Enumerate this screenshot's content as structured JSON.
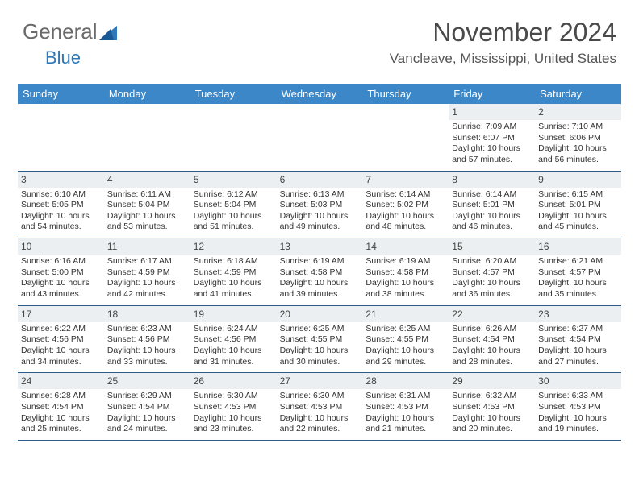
{
  "logo": {
    "text1": "General",
    "text2": "Blue"
  },
  "header": {
    "month_title": "November 2024",
    "location": "Vancleave, Mississippi, United States"
  },
  "day_names": [
    "Sunday",
    "Monday",
    "Tuesday",
    "Wednesday",
    "Thursday",
    "Friday",
    "Saturday"
  ],
  "colors": {
    "header_bg": "#3b87c8",
    "header_text": "#ffffff",
    "daynum_bg": "#eceff1",
    "row_border": "#2b5b86"
  },
  "weeks": [
    [
      {
        "empty": true
      },
      {
        "empty": true
      },
      {
        "empty": true
      },
      {
        "empty": true
      },
      {
        "empty": true
      },
      {
        "day": "1",
        "sunrise": "Sunrise: 7:09 AM",
        "sunset": "Sunset: 6:07 PM",
        "daylight": "Daylight: 10 hours and 57 minutes."
      },
      {
        "day": "2",
        "sunrise": "Sunrise: 7:10 AM",
        "sunset": "Sunset: 6:06 PM",
        "daylight": "Daylight: 10 hours and 56 minutes."
      }
    ],
    [
      {
        "day": "3",
        "sunrise": "Sunrise: 6:10 AM",
        "sunset": "Sunset: 5:05 PM",
        "daylight": "Daylight: 10 hours and 54 minutes."
      },
      {
        "day": "4",
        "sunrise": "Sunrise: 6:11 AM",
        "sunset": "Sunset: 5:04 PM",
        "daylight": "Daylight: 10 hours and 53 minutes."
      },
      {
        "day": "5",
        "sunrise": "Sunrise: 6:12 AM",
        "sunset": "Sunset: 5:04 PM",
        "daylight": "Daylight: 10 hours and 51 minutes."
      },
      {
        "day": "6",
        "sunrise": "Sunrise: 6:13 AM",
        "sunset": "Sunset: 5:03 PM",
        "daylight": "Daylight: 10 hours and 49 minutes."
      },
      {
        "day": "7",
        "sunrise": "Sunrise: 6:14 AM",
        "sunset": "Sunset: 5:02 PM",
        "daylight": "Daylight: 10 hours and 48 minutes."
      },
      {
        "day": "8",
        "sunrise": "Sunrise: 6:14 AM",
        "sunset": "Sunset: 5:01 PM",
        "daylight": "Daylight: 10 hours and 46 minutes."
      },
      {
        "day": "9",
        "sunrise": "Sunrise: 6:15 AM",
        "sunset": "Sunset: 5:01 PM",
        "daylight": "Daylight: 10 hours and 45 minutes."
      }
    ],
    [
      {
        "day": "10",
        "sunrise": "Sunrise: 6:16 AM",
        "sunset": "Sunset: 5:00 PM",
        "daylight": "Daylight: 10 hours and 43 minutes."
      },
      {
        "day": "11",
        "sunrise": "Sunrise: 6:17 AM",
        "sunset": "Sunset: 4:59 PM",
        "daylight": "Daylight: 10 hours and 42 minutes."
      },
      {
        "day": "12",
        "sunrise": "Sunrise: 6:18 AM",
        "sunset": "Sunset: 4:59 PM",
        "daylight": "Daylight: 10 hours and 41 minutes."
      },
      {
        "day": "13",
        "sunrise": "Sunrise: 6:19 AM",
        "sunset": "Sunset: 4:58 PM",
        "daylight": "Daylight: 10 hours and 39 minutes."
      },
      {
        "day": "14",
        "sunrise": "Sunrise: 6:19 AM",
        "sunset": "Sunset: 4:58 PM",
        "daylight": "Daylight: 10 hours and 38 minutes."
      },
      {
        "day": "15",
        "sunrise": "Sunrise: 6:20 AM",
        "sunset": "Sunset: 4:57 PM",
        "daylight": "Daylight: 10 hours and 36 minutes."
      },
      {
        "day": "16",
        "sunrise": "Sunrise: 6:21 AM",
        "sunset": "Sunset: 4:57 PM",
        "daylight": "Daylight: 10 hours and 35 minutes."
      }
    ],
    [
      {
        "day": "17",
        "sunrise": "Sunrise: 6:22 AM",
        "sunset": "Sunset: 4:56 PM",
        "daylight": "Daylight: 10 hours and 34 minutes."
      },
      {
        "day": "18",
        "sunrise": "Sunrise: 6:23 AM",
        "sunset": "Sunset: 4:56 PM",
        "daylight": "Daylight: 10 hours and 33 minutes."
      },
      {
        "day": "19",
        "sunrise": "Sunrise: 6:24 AM",
        "sunset": "Sunset: 4:56 PM",
        "daylight": "Daylight: 10 hours and 31 minutes."
      },
      {
        "day": "20",
        "sunrise": "Sunrise: 6:25 AM",
        "sunset": "Sunset: 4:55 PM",
        "daylight": "Daylight: 10 hours and 30 minutes."
      },
      {
        "day": "21",
        "sunrise": "Sunrise: 6:25 AM",
        "sunset": "Sunset: 4:55 PM",
        "daylight": "Daylight: 10 hours and 29 minutes."
      },
      {
        "day": "22",
        "sunrise": "Sunrise: 6:26 AM",
        "sunset": "Sunset: 4:54 PM",
        "daylight": "Daylight: 10 hours and 28 minutes."
      },
      {
        "day": "23",
        "sunrise": "Sunrise: 6:27 AM",
        "sunset": "Sunset: 4:54 PM",
        "daylight": "Daylight: 10 hours and 27 minutes."
      }
    ],
    [
      {
        "day": "24",
        "sunrise": "Sunrise: 6:28 AM",
        "sunset": "Sunset: 4:54 PM",
        "daylight": "Daylight: 10 hours and 25 minutes."
      },
      {
        "day": "25",
        "sunrise": "Sunrise: 6:29 AM",
        "sunset": "Sunset: 4:54 PM",
        "daylight": "Daylight: 10 hours and 24 minutes."
      },
      {
        "day": "26",
        "sunrise": "Sunrise: 6:30 AM",
        "sunset": "Sunset: 4:53 PM",
        "daylight": "Daylight: 10 hours and 23 minutes."
      },
      {
        "day": "27",
        "sunrise": "Sunrise: 6:30 AM",
        "sunset": "Sunset: 4:53 PM",
        "daylight": "Daylight: 10 hours and 22 minutes."
      },
      {
        "day": "28",
        "sunrise": "Sunrise: 6:31 AM",
        "sunset": "Sunset: 4:53 PM",
        "daylight": "Daylight: 10 hours and 21 minutes."
      },
      {
        "day": "29",
        "sunrise": "Sunrise: 6:32 AM",
        "sunset": "Sunset: 4:53 PM",
        "daylight": "Daylight: 10 hours and 20 minutes."
      },
      {
        "day": "30",
        "sunrise": "Sunrise: 6:33 AM",
        "sunset": "Sunset: 4:53 PM",
        "daylight": "Daylight: 10 hours and 19 minutes."
      }
    ]
  ]
}
